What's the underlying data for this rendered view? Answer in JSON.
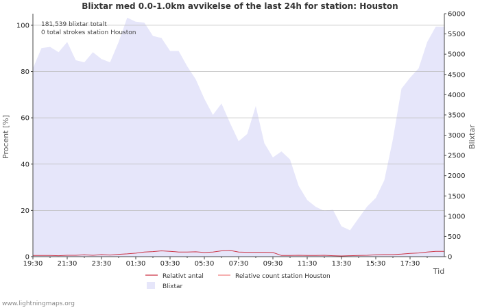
{
  "chart_data": {
    "type": "line",
    "title": "Blixtar med 0.0-1.0km avvikelse of the last 24h for station: Houston",
    "xlabel": "Tid",
    "ylabel_left": "Procent   [%]",
    "ylabel_right": "Blixtar",
    "ylim_left": [
      0,
      105
    ],
    "ylim_right": [
      0,
      6000
    ],
    "y_ticks_left": [
      "0",
      "20",
      "40",
      "60",
      "80",
      "100"
    ],
    "y_ticks_right": [
      "0",
      "500",
      "1000",
      "1500",
      "2000",
      "2500",
      "3000",
      "3500",
      "4000",
      "4500",
      "5000",
      "5500",
      "6000"
    ],
    "x_ticks": [
      "19:30",
      "21:30",
      "23:30",
      "01:30",
      "03:30",
      "05:30",
      "07:30",
      "09:30",
      "11:30",
      "13:30",
      "15:30",
      "17:30"
    ],
    "annotations": [
      "181,539 blixtar totalt",
      "0 total strokes station Houston"
    ],
    "legend": [
      "Relativt antal",
      "Relative count station Houston",
      "Blixtar"
    ],
    "colors": {
      "area": "#e6e6fa",
      "line": "#cc3344",
      "line2": "#f08080",
      "grid": "#bbbbbb"
    },
    "x_hours": [
      0,
      0.5,
      1,
      1.5,
      2,
      2.5,
      3,
      3.5,
      4,
      4.5,
      5,
      5.5,
      6,
      6.5,
      7,
      7.5,
      8,
      8.5,
      9,
      9.5,
      10,
      10.5,
      11,
      11.5,
      12,
      12.5,
      13,
      13.5,
      14,
      14.5,
      15,
      15.5,
      16,
      16.5,
      17,
      17.5,
      18,
      18.5,
      19,
      19.5,
      20,
      20.5,
      21,
      21.5,
      22,
      22.5,
      23,
      23.5
    ],
    "series": [
      {
        "name": "Blixtar",
        "axis": "right",
        "values": [
          4650,
          5150,
          5180,
          5050,
          5300,
          4850,
          4800,
          5050,
          4880,
          4800,
          5300,
          5900,
          5800,
          5780,
          5450,
          5400,
          5080,
          5080,
          4700,
          4380,
          3900,
          3500,
          3780,
          3300,
          2850,
          3030,
          3720,
          2800,
          2450,
          2600,
          2400,
          1750,
          1400,
          1230,
          1130,
          1160,
          750,
          650,
          950,
          1240,
          1450,
          1890,
          2900,
          4150,
          4420,
          4650,
          5300,
          5680
        ]
      },
      {
        "name": "Relativt antal",
        "axis": "left",
        "values": [
          0.5,
          0.5,
          0.5,
          0.4,
          0.6,
          0.6,
          0.8,
          0.6,
          0.9,
          0.7,
          1.0,
          1.2,
          1.5,
          2.0,
          2.2,
          2.5,
          2.3,
          2.0,
          2.0,
          2.1,
          1.8,
          2.0,
          2.5,
          2.7,
          2.0,
          1.9,
          1.9,
          1.9,
          1.8,
          0.5,
          0.5,
          0.6,
          0.5,
          0.5,
          0.6,
          0.4,
          0.3,
          0.4,
          0.5,
          0.6,
          0.8,
          0.9,
          0.9,
          1.1,
          1.4,
          1.6,
          2.0,
          2.3
        ]
      },
      {
        "name": "Relative count station Houston",
        "axis": "left",
        "values": [
          0,
          0,
          0,
          0,
          0,
          0,
          0,
          0,
          0,
          0,
          0,
          0,
          0,
          0,
          0,
          0,
          0,
          0,
          0,
          0,
          0,
          0,
          0,
          0,
          0,
          0,
          0,
          0,
          0,
          0,
          0,
          0,
          0,
          0,
          0,
          0,
          0,
          0,
          0,
          0,
          0,
          0,
          0,
          0,
          0,
          0,
          0,
          0
        ]
      }
    ]
  },
  "footer": {
    "credit": "www.lightningmaps.org"
  }
}
